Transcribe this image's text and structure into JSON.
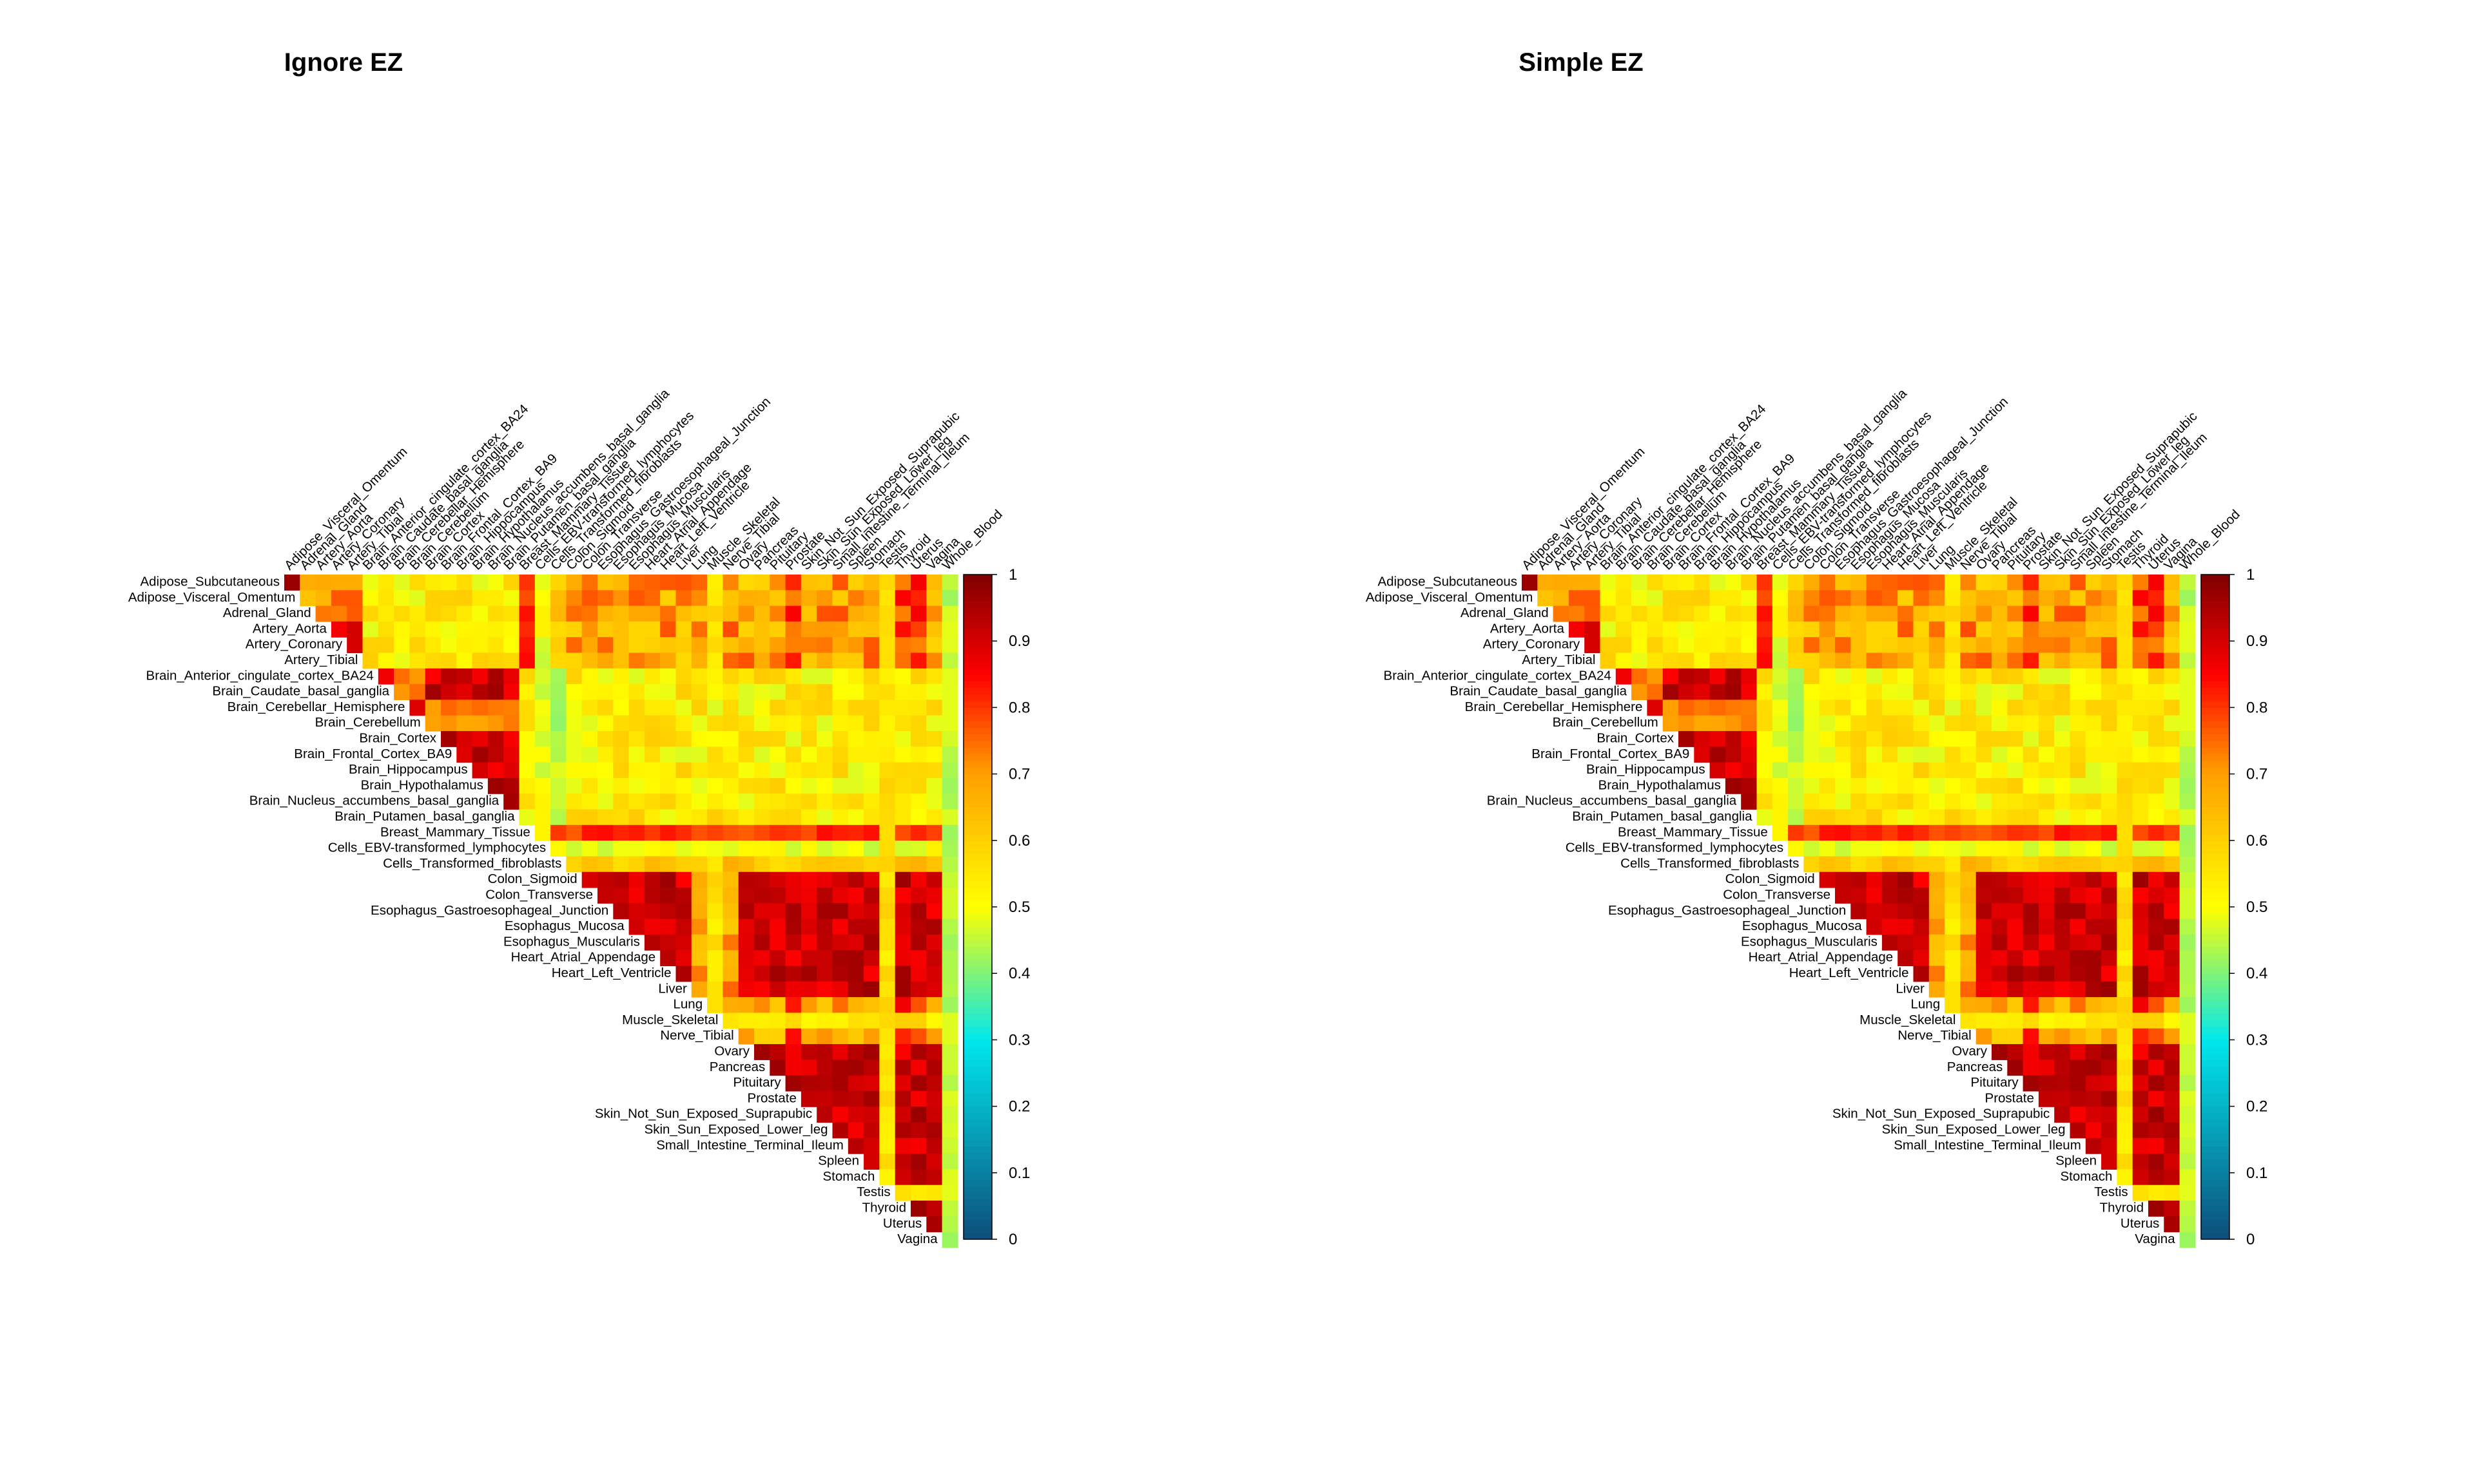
{
  "chart_data": [
    {
      "type": "heatmap",
      "title": "Ignore EZ",
      "shape": "upper-triangular",
      "colorbar": {
        "min": 0,
        "max": 1,
        "ticks": [
          0,
          0.1,
          0.2,
          0.3,
          0.4,
          0.5,
          0.6,
          0.7,
          0.8,
          0.9,
          1
        ],
        "palette": [
          "#0d4d7a",
          "#00e8ee",
          "#ffff00",
          "#ffa000",
          "#ff0000",
          "#800000"
        ]
      },
      "row_labels": [
        "Adipose_Subcutaneous",
        "Adipose_Visceral_Omentum",
        "Adrenal_Gland",
        "Artery_Aorta",
        "Artery_Coronary",
        "Artery_Tibial",
        "Brain_Anterior_cingulate_cortex_BA24",
        "Brain_Caudate_basal_ganglia",
        "Brain_Cerebellar_Hemisphere",
        "Brain_Cerebellum",
        "Brain_Cortex",
        "Brain_Frontal_Cortex_BA9",
        "Brain_Hippocampus",
        "Brain_Hypothalamus",
        "Brain_Nucleus_accumbens_basal_ganglia",
        "Brain_Putamen_basal_ganglia",
        "Breast_Mammary_Tissue",
        "Cells_EBV-transformed_lymphocytes",
        "Cells_Transformed_fibroblasts",
        "Colon_Sigmoid",
        "Colon_Transverse",
        "Esophagus_Gastroesophageal_Junction",
        "Esophagus_Mucosa",
        "Esophagus_Muscularis",
        "Heart_Atrial_Appendage",
        "Heart_Left_Ventricle",
        "Liver",
        "Lung",
        "Muscle_Skeletal",
        "Nerve_Tibial",
        "Ovary",
        "Pancreas",
        "Pituitary",
        "Prostate",
        "Skin_Not_Sun_Exposed_Suprapubic",
        "Skin_Sun_Exposed_Lower_leg",
        "Small_Intestine_Terminal_Ileum",
        "Spleen",
        "Stomach",
        "Testis",
        "Thyroid",
        "Uterus",
        "Vagina"
      ],
      "col_labels": [
        "Adipose_Visceral_Omentum",
        "Adrenal_Gland",
        "Artery_Aorta",
        "Artery_Coronary",
        "Artery_Tibial",
        "Brain_Anterior_cingulate_cortex_BA24",
        "Brain_Caudate_basal_ganglia",
        "Brain_Cerebellar_Hemisphere",
        "Brain_Cerebellum",
        "Brain_Cortex",
        "Brain_Frontal_Cortex_BA9",
        "Brain_Hippocampus",
        "Brain_Hypothalamus",
        "Brain_Nucleus_accumbens_basal_ganglia",
        "Brain_Putamen_basal_ganglia",
        "Breast_Mammary_Tissue",
        "Cells_EBV-transformed_lymphocytes",
        "Cells_Transformed_fibroblasts",
        "Colon_Sigmoid",
        "Colon_Transverse",
        "Esophagus_Gastroesophageal_Junction",
        "Esophagus_Mucosa",
        "Esophagus_Muscularis",
        "Heart_Atrial_Appendage",
        "Heart_Left_Ventricle",
        "Liver",
        "Lung",
        "Muscle_Skeletal",
        "Nerve_Tibial",
        "Ovary",
        "Pancreas",
        "Pituitary",
        "Prostate",
        "Skin_Not_Sun_Exposed_Suprapubic",
        "Skin_Sun_Exposed_Lower_leg",
        "Small_Intestine_Terminal_Ileum",
        "Spleen",
        "Stomach",
        "Testis",
        "Thyroid",
        "Uterus",
        "Vagina",
        "Whole_Blood"
      ],
      "note": "values estimated from color; rows/cols follow tissue order; columns shifted by one (row i includes columns >= i)"
    },
    {
      "type": "heatmap",
      "title": "Simple EZ",
      "shape": "upper-triangular",
      "colorbar": {
        "min": 0,
        "max": 1,
        "ticks": [
          0,
          0.1,
          0.2,
          0.3,
          0.4,
          0.5,
          0.6,
          0.7,
          0.8,
          0.9,
          1
        ],
        "palette": [
          "#0d4d7a",
          "#00e8ee",
          "#ffff00",
          "#ffa000",
          "#ff0000",
          "#800000"
        ]
      },
      "row_labels": [
        "Adipose_Subcutaneous",
        "Adipose_Visceral_Omentum",
        "Adrenal_Gland",
        "Artery_Aorta",
        "Artery_Coronary",
        "Artery_Tibial",
        "Brain_Anterior_cingulate_cortex_BA24",
        "Brain_Caudate_basal_ganglia",
        "Brain_Cerebellar_Hemisphere",
        "Brain_Cerebellum",
        "Brain_Cortex",
        "Brain_Frontal_Cortex_BA9",
        "Brain_Hippocampus",
        "Brain_Hypothalamus",
        "Brain_Nucleus_accumbens_basal_ganglia",
        "Brain_Putamen_basal_ganglia",
        "Breast_Mammary_Tissue",
        "Cells_EBV-transformed_lymphocytes",
        "Cells_Transformed_fibroblasts",
        "Colon_Sigmoid",
        "Colon_Transverse",
        "Esophagus_Gastroesophageal_Junction",
        "Esophagus_Mucosa",
        "Esophagus_Muscularis",
        "Heart_Atrial_Appendage",
        "Heart_Left_Ventricle",
        "Liver",
        "Lung",
        "Muscle_Skeletal",
        "Nerve_Tibial",
        "Ovary",
        "Pancreas",
        "Pituitary",
        "Prostate",
        "Skin_Not_Sun_Exposed_Suprapubic",
        "Skin_Sun_Exposed_Lower_leg",
        "Small_Intestine_Terminal_Ileum",
        "Spleen",
        "Stomach",
        "Testis",
        "Thyroid",
        "Uterus",
        "Vagina"
      ],
      "col_labels": [
        "Adipose_Visceral_Omentum",
        "Adrenal_Gland",
        "Artery_Aorta",
        "Artery_Coronary",
        "Artery_Tibial",
        "Brain_Anterior_cingulate_cortex_BA24",
        "Brain_Caudate_basal_ganglia",
        "Brain_Cerebellar_Hemisphere",
        "Brain_Cerebellum",
        "Brain_Cortex",
        "Brain_Frontal_Cortex_BA9",
        "Brain_Hippocampus",
        "Brain_Hypothalamus",
        "Brain_Nucleus_accumbens_basal_ganglia",
        "Brain_Putamen_basal_ganglia",
        "Breast_Mammary_Tissue",
        "Cells_EBV-transformed_lymphocytes",
        "Cells_Transformed_fibroblasts",
        "Colon_Sigmoid",
        "Colon_Transverse",
        "Esophagus_Gastroesophageal_Junction",
        "Esophagus_Mucosa",
        "Esophagus_Muscularis",
        "Heart_Atrial_Appendage",
        "Heart_Left_Ventricle",
        "Liver",
        "Lung",
        "Muscle_Skeletal",
        "Nerve_Tibial",
        "Ovary",
        "Pancreas",
        "Pituitary",
        "Prostate",
        "Skin_Not_Sun_Exposed_Suprapubic",
        "Skin_Sun_Exposed_Lower_leg",
        "Small_Intestine_Terminal_Ileum",
        "Spleen",
        "Stomach",
        "Testis",
        "Thyroid",
        "Uterus",
        "Vagina",
        "Whole_Blood"
      ],
      "note": "values estimated from color; nearly identical to Ignore EZ"
    }
  ]
}
